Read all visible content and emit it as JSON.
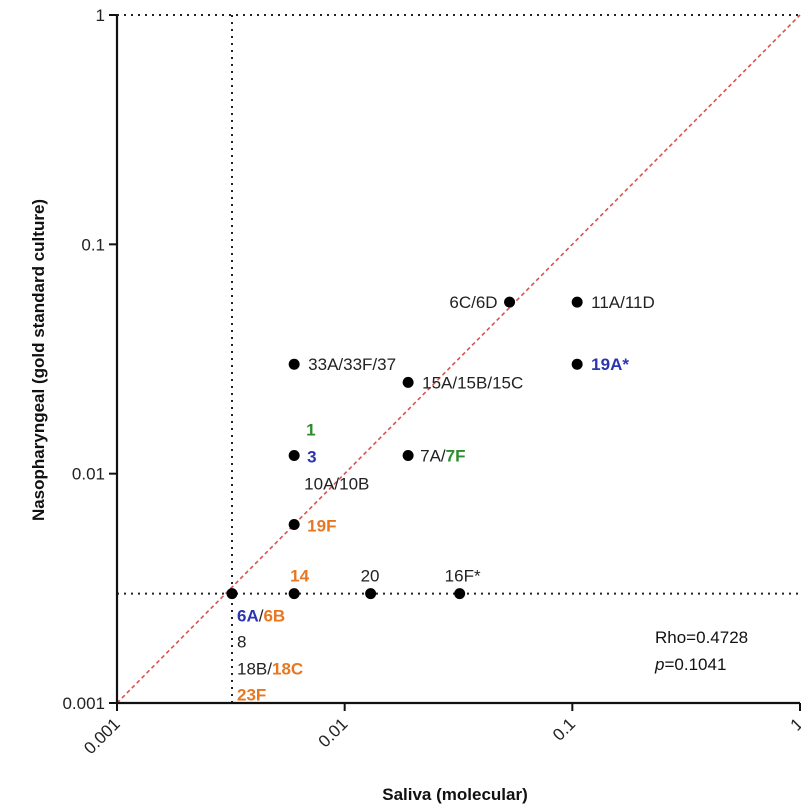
{
  "chart_data": {
    "type": "scatter",
    "title": "",
    "xlabel": "Saliva (molecular)",
    "ylabel": "Nasopharyngeal (gold standard culture)",
    "xscale": "log",
    "yscale": "log",
    "xlim": [
      0.001,
      1
    ],
    "ylim": [
      0.001,
      1
    ],
    "x_ticks": [
      "0.001",
      "0.01",
      "0.1",
      "1"
    ],
    "y_ticks": [
      "0.001",
      "0.01",
      "0.1",
      "1"
    ],
    "grid": false,
    "reference_line": {
      "type": "identity",
      "color": "#d9534f",
      "style": "dashed"
    },
    "threshold_lines": {
      "x": 0.0032,
      "y": 0.003,
      "style": "dotted",
      "color": "#222222"
    },
    "points": [
      {
        "x": 0.0032,
        "y": 0.003
      },
      {
        "x": 0.006,
        "y": 0.003
      },
      {
        "x": 0.013,
        "y": 0.003
      },
      {
        "x": 0.032,
        "y": 0.003
      },
      {
        "x": 0.006,
        "y": 0.006
      },
      {
        "x": 0.006,
        "y": 0.012
      },
      {
        "x": 0.019,
        "y": 0.012
      },
      {
        "x": 0.006,
        "y": 0.03
      },
      {
        "x": 0.019,
        "y": 0.025
      },
      {
        "x": 0.053,
        "y": 0.056
      },
      {
        "x": 0.105,
        "y": 0.056
      },
      {
        "x": 0.105,
        "y": 0.03
      }
    ],
    "annotations": [
      {
        "x": 0.105,
        "y": 0.056,
        "parts": [
          {
            "text": "11A/11D",
            "color": "#222222",
            "bold": false
          }
        ]
      },
      {
        "x": 0.053,
        "y": 0.056,
        "parts": [
          {
            "text": "6C/6D",
            "color": "#222222",
            "bold": false
          }
        ]
      },
      {
        "x": 0.006,
        "y": 0.03,
        "parts": [
          {
            "text": "33A/33F/37",
            "color": "#222222",
            "bold": false
          }
        ]
      },
      {
        "x": 0.105,
        "y": 0.03,
        "parts": [
          {
            "text": "19A*",
            "color": "#2b35b0",
            "bold": true
          }
        ]
      },
      {
        "x": 0.019,
        "y": 0.025,
        "parts": [
          {
            "text": "15A/15B/15C",
            "color": "#222222",
            "bold": false
          }
        ]
      },
      {
        "x": 0.006,
        "y": 0.012,
        "parts": [
          {
            "text": "1",
            "color": "#2e8b2e",
            "bold": true
          }
        ]
      },
      {
        "x": 0.006,
        "y": 0.012,
        "parts": [
          {
            "text": "3",
            "color": "#2b35b0",
            "bold": true
          }
        ]
      },
      {
        "x": 0.006,
        "y": 0.012,
        "parts": [
          {
            "text": "10A/10B",
            "color": "#222222",
            "bold": false
          }
        ]
      },
      {
        "x": 0.019,
        "y": 0.012,
        "parts": [
          {
            "text": "7A/",
            "color": "#222222",
            "bold": false
          },
          {
            "text": "7F",
            "color": "#2e8b2e",
            "bold": true
          }
        ]
      },
      {
        "x": 0.006,
        "y": 0.006,
        "parts": [
          {
            "text": "19F",
            "color": "#e87722",
            "bold": true
          }
        ]
      },
      {
        "x": 0.006,
        "y": 0.003,
        "parts": [
          {
            "text": "14",
            "color": "#e87722",
            "bold": true
          }
        ]
      },
      {
        "x": 0.013,
        "y": 0.003,
        "parts": [
          {
            "text": "20",
            "color": "#222222",
            "bold": false
          }
        ]
      },
      {
        "x": 0.032,
        "y": 0.003,
        "parts": [
          {
            "text": "16F*",
            "color": "#222222",
            "bold": false
          }
        ]
      },
      {
        "x": 0.0032,
        "y": 0.003,
        "parts": [
          {
            "text": "6A",
            "color": "#2b35b0",
            "bold": true
          },
          {
            "text": "/",
            "color": "#222222",
            "bold": false
          },
          {
            "text": "6B",
            "color": "#e87722",
            "bold": true
          }
        ]
      },
      {
        "x": 0.0032,
        "y": 0.003,
        "parts": [
          {
            "text": "8",
            "color": "#222222",
            "bold": false
          }
        ]
      },
      {
        "x": 0.0032,
        "y": 0.003,
        "parts": [
          {
            "text": "18B/",
            "color": "#222222",
            "bold": false
          },
          {
            "text": "18C",
            "color": "#e87722",
            "bold": true
          }
        ]
      },
      {
        "x": 0.0032,
        "y": 0.003,
        "parts": [
          {
            "text": "23F",
            "color": "#e87722",
            "bold": true
          }
        ]
      }
    ],
    "stats": {
      "rho": "Rho=0.4728",
      "p_symbol": "p",
      "p_value": "=0.1041"
    }
  }
}
